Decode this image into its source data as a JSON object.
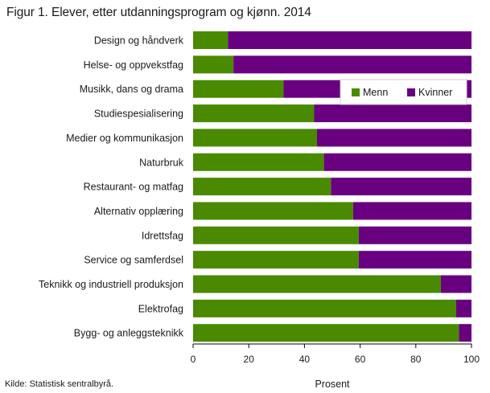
{
  "chart_data": {
    "type": "bar",
    "orientation": "horizontal",
    "stacked": true,
    "title": "Figur 1. Elever, etter utdanningsprogram og kjønn. 2014",
    "xlabel": "Prosent",
    "ylabel": "",
    "xlim": [
      0,
      100
    ],
    "xticks": [
      0,
      20,
      40,
      60,
      80,
      100
    ],
    "grid": false,
    "legend_position": "top-right",
    "categories": [
      "Design og håndverk",
      "Helse- og oppvekstfag",
      "Musikk, dans og drama",
      "Studiespesialisering",
      "Medier og kommunikasjon",
      "Naturbruk",
      "Restaurant- og matfag",
      "Alternativ opplæring",
      "Idrettsfag",
      "Service og samferdsel",
      "Teknikk og industriell produksjon",
      "Elektrofag",
      "Bygg- og anleggsteknikk"
    ],
    "series": [
      {
        "name": "Menn",
        "color": "#4a8a00",
        "values": [
          12.5,
          14.5,
          32.5,
          43.5,
          44.5,
          47,
          49.5,
          57.5,
          59.5,
          59.5,
          89,
          94.5,
          95.5
        ]
      },
      {
        "name": "Kvinner",
        "color": "#690080",
        "values": [
          87.5,
          85.5,
          67.5,
          56.5,
          55.5,
          53,
          50.5,
          42.5,
          40.5,
          40.5,
          11,
          5.5,
          4.5
        ]
      }
    ],
    "source": "Kilde: Statistisk sentralbyrå."
  }
}
